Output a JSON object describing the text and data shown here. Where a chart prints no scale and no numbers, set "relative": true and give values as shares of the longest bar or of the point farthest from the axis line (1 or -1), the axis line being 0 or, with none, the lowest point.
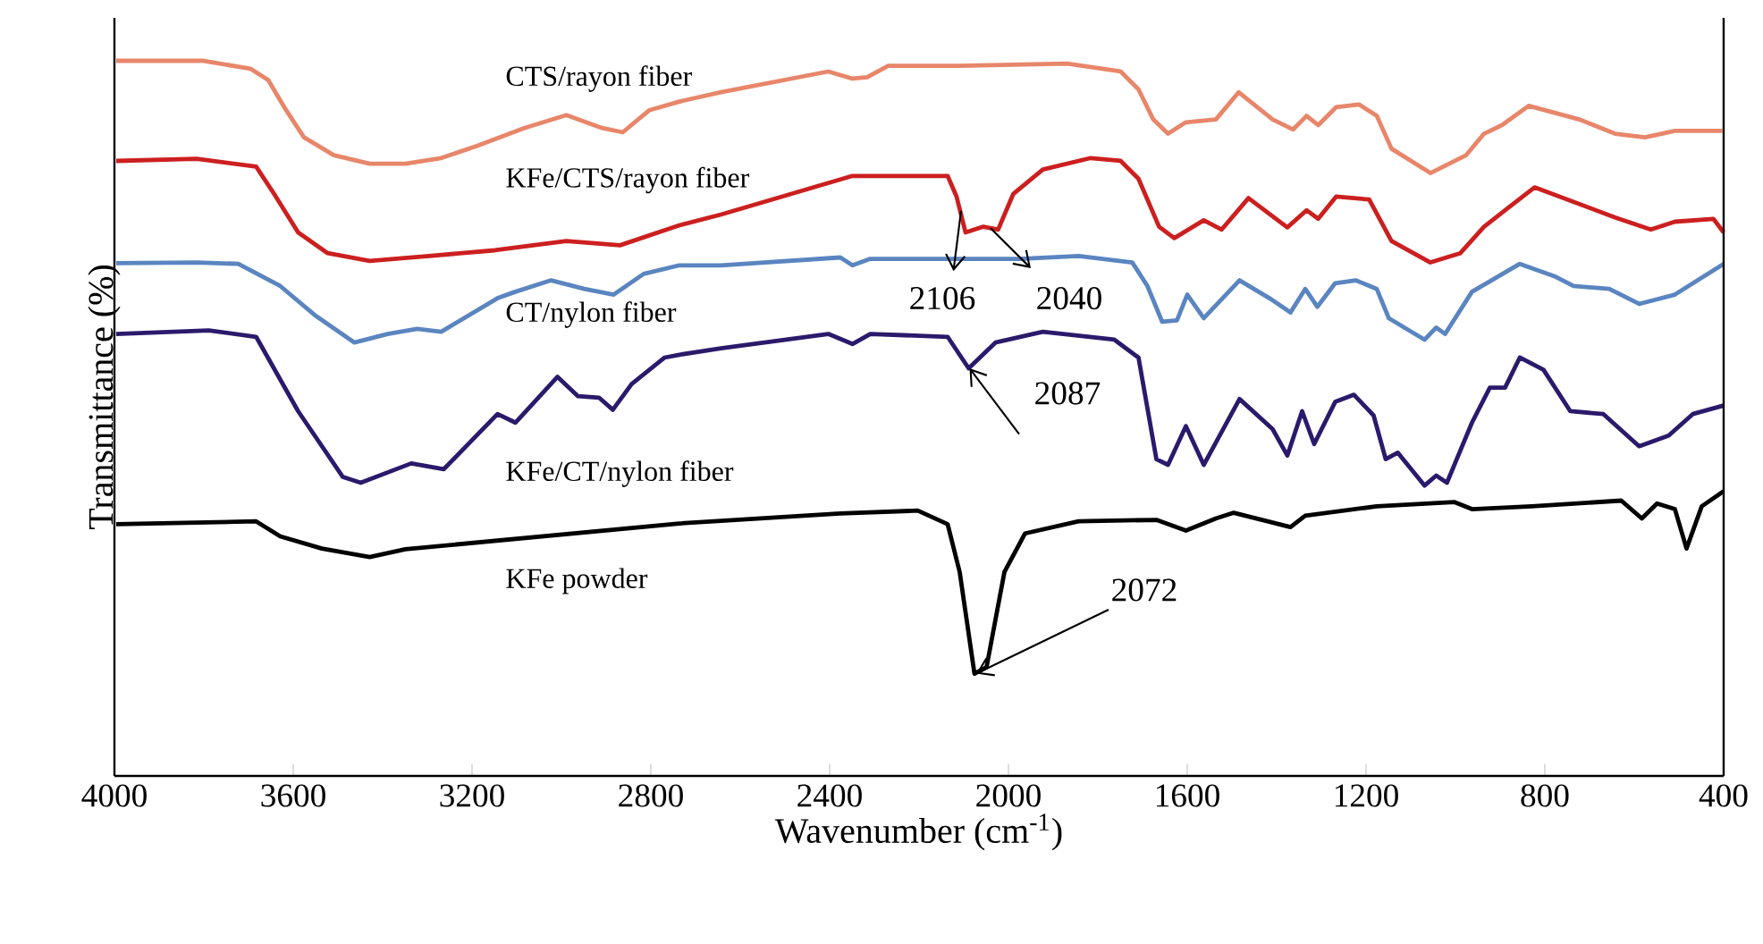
{
  "chart_data": {
    "type": "line",
    "relative": true,
    "xlabel": "Wavenumber (cm$^{-1}$)",
    "ylabel": "Transmittance (%)",
    "xlim": [
      4000,
      400
    ],
    "xticks": [
      4000,
      3600,
      3200,
      2800,
      2400,
      2000,
      1600,
      1200,
      800,
      400
    ],
    "series": [
      {
        "name": "CTS/rayon fiber",
        "color": "#e8866a",
        "x": [
          3996,
          3803,
          3696,
          3656,
          3616,
          3576,
          3509,
          3429,
          3349,
          3269,
          3189,
          3083,
          2989,
          2909,
          2863,
          2803,
          2736,
          2643,
          2403,
          2349,
          2316,
          2269,
          2109,
          1869,
          1749,
          1709,
          1676,
          1643,
          1603,
          1536,
          1485,
          1409,
          1363,
          1333,
          1307,
          1267,
          1216,
          1176,
          1143,
          1056,
          976,
          936,
          896,
          836,
          723,
          643,
          576,
          509,
          403
        ],
        "values": [
          1.0,
          1.0,
          0.989,
          0.973,
          0.931,
          0.893,
          0.868,
          0.856,
          0.856,
          0.864,
          0.881,
          0.906,
          0.924,
          0.906,
          0.9,
          0.931,
          0.943,
          0.956,
          0.985,
          0.975,
          0.977,
          0.993,
          0.993,
          0.996,
          0.985,
          0.96,
          0.918,
          0.898,
          0.914,
          0.918,
          0.956,
          0.918,
          0.904,
          0.923,
          0.91,
          0.935,
          0.939,
          0.923,
          0.877,
          0.843,
          0.868,
          0.898,
          0.91,
          0.937,
          0.918,
          0.898,
          0.893,
          0.902,
          0.902
        ]
      },
      {
        "name": "KFe/CTS/rayon fiber",
        "color": "#cc1f1f",
        "x": [
          3996,
          3816,
          3683,
          3643,
          3589,
          3523,
          3429,
          3296,
          3149,
          2989,
          2869,
          2736,
          2643,
          2349,
          2136,
          2116,
          2096,
          2056,
          2023,
          1989,
          1923,
          1816,
          1749,
          1709,
          1663,
          1629,
          1563,
          1523,
          1463,
          1376,
          1333,
          1307,
          1267,
          1193,
          1143,
          1056,
          989,
          936,
          883,
          823,
          643,
          563,
          509,
          423,
          400
        ],
        "values": [
          0.86,
          0.863,
          0.852,
          0.814,
          0.76,
          0.731,
          0.72,
          0.727,
          0.735,
          0.748,
          0.742,
          0.77,
          0.785,
          0.839,
          0.839,
          0.81,
          0.76,
          0.768,
          0.764,
          0.814,
          0.848,
          0.864,
          0.86,
          0.835,
          0.768,
          0.752,
          0.777,
          0.764,
          0.808,
          0.767,
          0.791,
          0.779,
          0.81,
          0.806,
          0.748,
          0.718,
          0.731,
          0.768,
          0.794,
          0.823,
          0.781,
          0.764,
          0.775,
          0.779,
          0.76
        ]
      },
      {
        "name": "CT/nylon fiber",
        "color": "#5a85c0",
        "x": [
          3996,
          3816,
          3723,
          3629,
          3549,
          3463,
          3389,
          3323,
          3269,
          3143,
          3103,
          3023,
          2949,
          2883,
          2816,
          2736,
          2643,
          2376,
          2349,
          2309,
          1976,
          1843,
          1723,
          1689,
          1656,
          1623,
          1600,
          1563,
          1483,
          1416,
          1369,
          1336,
          1309,
          1269,
          1223,
          1176,
          1149,
          1069,
          1043,
          1023,
          963,
          856,
          776,
          736,
          656,
          589,
          509,
          400
        ],
        "values": [
          0.717,
          0.718,
          0.716,
          0.685,
          0.643,
          0.606,
          0.618,
          0.625,
          0.621,
          0.668,
          0.677,
          0.693,
          0.681,
          0.673,
          0.702,
          0.714,
          0.714,
          0.725,
          0.714,
          0.723,
          0.723,
          0.727,
          0.718,
          0.685,
          0.635,
          0.637,
          0.673,
          0.64,
          0.693,
          0.668,
          0.648,
          0.681,
          0.656,
          0.689,
          0.693,
          0.681,
          0.64,
          0.61,
          0.627,
          0.618,
          0.677,
          0.716,
          0.698,
          0.685,
          0.681,
          0.66,
          0.673,
          0.716
        ]
      },
      {
        "name": "KFe/CT/nylon fiber",
        "color": "#2b1a6b",
        "x": [
          3996,
          3789,
          3683,
          3589,
          3489,
          3449,
          3336,
          3263,
          3143,
          3103,
          3009,
          2963,
          2916,
          2885,
          2843,
          2769,
          2736,
          2643,
          2403,
          2349,
          2309,
          2136,
          2089,
          2029,
          1923,
          1763,
          1709,
          1669,
          1643,
          1603,
          1563,
          1483,
          1409,
          1376,
          1343,
          1316,
          1269,
          1227,
          1183,
          1156,
          1129,
          1069,
          1043,
          1019,
          963,
          923,
          889,
          856,
          803,
          743,
          669,
          589,
          523,
          469,
          400
        ],
        "values": [
          0.618,
          0.623,
          0.614,
          0.51,
          0.418,
          0.41,
          0.437,
          0.429,
          0.506,
          0.494,
          0.558,
          0.531,
          0.529,
          0.512,
          0.548,
          0.585,
          0.589,
          0.598,
          0.618,
          0.604,
          0.618,
          0.614,
          0.57,
          0.606,
          0.621,
          0.61,
          0.585,
          0.443,
          0.435,
          0.489,
          0.435,
          0.527,
          0.485,
          0.448,
          0.51,
          0.464,
          0.523,
          0.533,
          0.504,
          0.443,
          0.452,
          0.406,
          0.42,
          0.41,
          0.494,
          0.543,
          0.543,
          0.585,
          0.568,
          0.51,
          0.506,
          0.461,
          0.476,
          0.506,
          0.518
        ]
      },
      {
        "name": "KFe powder",
        "color": "#000000",
        "x": [
          3996,
          3683,
          3629,
          3536,
          3429,
          3349,
          2736,
          2376,
          2203,
          2136,
          2109,
          2076,
          2049,
          2009,
          1963,
          1843,
          1669,
          1603,
          1536,
          1496,
          1369,
          1336,
          1176,
          1003,
          963,
          829,
          629,
          583,
          549,
          509,
          483,
          449,
          400
        ],
        "values": [
          0.352,
          0.356,
          0.335,
          0.318,
          0.306,
          0.317,
          0.353,
          0.367,
          0.371,
          0.352,
          0.285,
          0.143,
          0.152,
          0.285,
          0.339,
          0.356,
          0.358,
          0.343,
          0.36,
          0.368,
          0.348,
          0.364,
          0.377,
          0.383,
          0.373,
          0.377,
          0.385,
          0.36,
          0.381,
          0.373,
          0.318,
          0.377,
          0.398
        ]
      }
    ],
    "annotations": [
      {
        "text": "2106",
        "x": 2106,
        "y": 0.79
      },
      {
        "text": "2040",
        "x": 2040,
        "y": 0.766
      },
      {
        "text": "2087",
        "x": 2087,
        "y": 0.57
      },
      {
        "text": "2072",
        "x": 2072,
        "y": 0.143
      }
    ]
  }
}
